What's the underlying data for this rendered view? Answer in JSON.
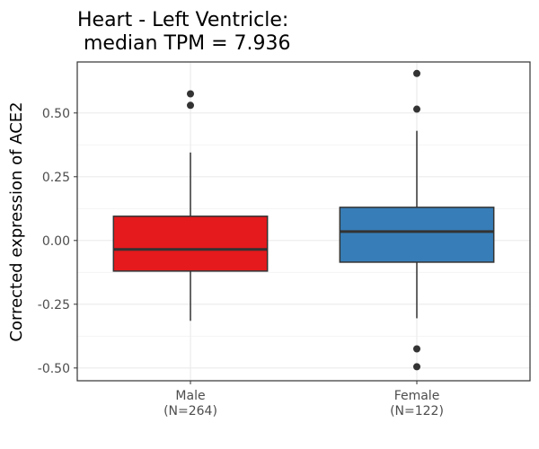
{
  "chart_data": {
    "type": "boxplot",
    "title_lines": [
      "Heart - Left Ventricle:",
      " median TPM = 7.936"
    ],
    "ylabel": "Corrected expression of ACE2",
    "xlabel": "",
    "ylim": [
      -0.55,
      0.7
    ],
    "yticks": [
      0.5,
      0.25,
      0.0,
      -0.25,
      -0.5
    ],
    "ytick_labels": [
      "0.50",
      "0.25",
      "0.00",
      "-0.25",
      "-0.50"
    ],
    "grid": true,
    "legend": "none",
    "categories": [
      {
        "label": "Male",
        "n_label": "(N=264)",
        "color": "#e41a1c",
        "q1": -0.12,
        "median": -0.035,
        "q3": 0.095,
        "whisker_low": -0.315,
        "whisker_high": 0.345,
        "outliers": [
          0.575,
          0.53
        ]
      },
      {
        "label": "Female",
        "n_label": "(N=122)",
        "color": "#377eb8",
        "q1": -0.085,
        "median": 0.035,
        "q3": 0.13,
        "whisker_low": -0.305,
        "whisker_high": 0.43,
        "outliers": [
          0.655,
          0.515,
          -0.425,
          -0.495
        ]
      }
    ]
  }
}
